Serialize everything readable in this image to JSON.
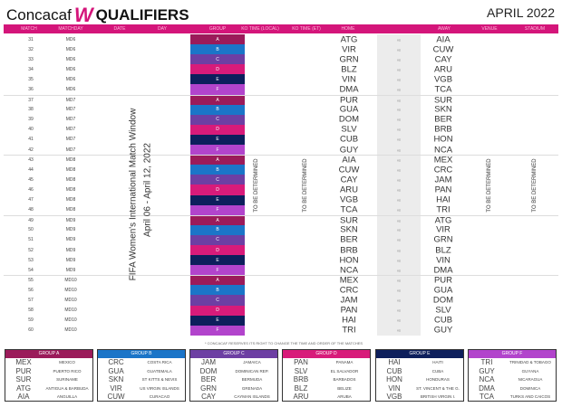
{
  "header": {
    "brand": "Concacaf",
    "logo_mark": "W",
    "title": "QUALIFIERS",
    "month": "APRIL 2022"
  },
  "columns": [
    "MATCH",
    "MATCHDAY",
    "DATE",
    "DAY",
    "GROUP",
    "KO TIME (LOCAL)",
    "KO TIME (ET)",
    "HOME",
    "AWAY",
    "VENUE",
    "STADIUM"
  ],
  "window_text": [
    "FIFA Women's International Match Window",
    "April 06 - April 12, 2022"
  ],
  "tbd": "TO BE DETERMINED",
  "vs": "vs",
  "group_colors": {
    "A": "#9b1b5a",
    "B": "#1b75c8",
    "C": "#6d3fa3",
    "D": "#d81b7a",
    "E": "#0d1f5c",
    "F": "#b244cc"
  },
  "matches": [
    {
      "match": "31",
      "matchday": "MD6",
      "group": "A",
      "home": "ATG",
      "away": "AIA"
    },
    {
      "match": "32",
      "matchday": "MD6",
      "group": "B",
      "home": "VIR",
      "away": "CUW"
    },
    {
      "match": "33",
      "matchday": "MD6",
      "group": "C",
      "home": "GRN",
      "away": "CAY"
    },
    {
      "match": "34",
      "matchday": "MD6",
      "group": "D",
      "home": "BLZ",
      "away": "ARU"
    },
    {
      "match": "35",
      "matchday": "MD6",
      "group": "E",
      "home": "VIN",
      "away": "VGB"
    },
    {
      "match": "36",
      "matchday": "MD6",
      "group": "F",
      "home": "DMA",
      "away": "TCA"
    },
    {
      "match": "37",
      "matchday": "MD7",
      "group": "A",
      "home": "PUR",
      "away": "SUR"
    },
    {
      "match": "38",
      "matchday": "MD7",
      "group": "B",
      "home": "GUA",
      "away": "SKN"
    },
    {
      "match": "39",
      "matchday": "MD7",
      "group": "C",
      "home": "DOM",
      "away": "BER"
    },
    {
      "match": "40",
      "matchday": "MD7",
      "group": "D",
      "home": "SLV",
      "away": "BRB"
    },
    {
      "match": "41",
      "matchday": "MD7",
      "group": "E",
      "home": "CUB",
      "away": "HON"
    },
    {
      "match": "42",
      "matchday": "MD7",
      "group": "F",
      "home": "GUY",
      "away": "NCA"
    },
    {
      "match": "43",
      "matchday": "MD8",
      "group": "A",
      "home": "AIA",
      "away": "MEX"
    },
    {
      "match": "44",
      "matchday": "MD8",
      "group": "B",
      "home": "CUW",
      "away": "CRC"
    },
    {
      "match": "45",
      "matchday": "MD8",
      "group": "C",
      "home": "CAY",
      "away": "JAM"
    },
    {
      "match": "46",
      "matchday": "MD8",
      "group": "D",
      "home": "ARU",
      "away": "PAN"
    },
    {
      "match": "47",
      "matchday": "MD8",
      "group": "E",
      "home": "VGB",
      "away": "HAI"
    },
    {
      "match": "48",
      "matchday": "MD8",
      "group": "F",
      "home": "TCA",
      "away": "TRI"
    },
    {
      "match": "49",
      "matchday": "MD9",
      "group": "A",
      "home": "SUR",
      "away": "ATG"
    },
    {
      "match": "50",
      "matchday": "MD9",
      "group": "B",
      "home": "SKN",
      "away": "VIR"
    },
    {
      "match": "51",
      "matchday": "MD9",
      "group": "C",
      "home": "BER",
      "away": "GRN"
    },
    {
      "match": "52",
      "matchday": "MD9",
      "group": "D",
      "home": "BRB",
      "away": "BLZ"
    },
    {
      "match": "53",
      "matchday": "MD9",
      "group": "E",
      "home": "HON",
      "away": "VIN"
    },
    {
      "match": "54",
      "matchday": "MD9",
      "group": "F",
      "home": "NCA",
      "away": "DMA"
    },
    {
      "match": "55",
      "matchday": "MD10",
      "group": "A",
      "home": "MEX",
      "away": "PUR"
    },
    {
      "match": "56",
      "matchday": "MD10",
      "group": "B",
      "home": "CRC",
      "away": "GUA"
    },
    {
      "match": "57",
      "matchday": "MD10",
      "group": "C",
      "home": "JAM",
      "away": "DOM"
    },
    {
      "match": "58",
      "matchday": "MD10",
      "group": "D",
      "home": "PAN",
      "away": "SLV"
    },
    {
      "match": "59",
      "matchday": "MD10",
      "group": "E",
      "home": "HAI",
      "away": "CUB"
    },
    {
      "match": "60",
      "matchday": "MD10",
      "group": "F",
      "home": "TRI",
      "away": "GUY"
    }
  ],
  "note": "* CONCACAF RESERVES ITS RIGHT TO CHANGE THE TIME AND ORDER OF THE MATCHES",
  "groups": [
    {
      "title": "GROUP A",
      "key": "A",
      "teams": [
        [
          "MEX",
          "MEXICO"
        ],
        [
          "PUR",
          "PUERTO RICO"
        ],
        [
          "SUR",
          "SURINAME"
        ],
        [
          "ATG",
          "ANTIGUA & BARBUDA"
        ],
        [
          "AIA",
          "ANGUILLA"
        ]
      ]
    },
    {
      "title": "GROUP B",
      "key": "B",
      "teams": [
        [
          "CRC",
          "COSTA RICA"
        ],
        [
          "GUA",
          "GUATEMALA"
        ],
        [
          "SKN",
          "ST KITTS & NEVIS"
        ],
        [
          "VIR",
          "US VIRGIN ISLANDS"
        ],
        [
          "CUW",
          "CURACAO"
        ]
      ]
    },
    {
      "title": "GROUP C",
      "key": "C",
      "teams": [
        [
          "JAM",
          "JAMAICA"
        ],
        [
          "DOM",
          "DOMINICAN REP."
        ],
        [
          "BER",
          "BERMUDA"
        ],
        [
          "GRN",
          "GRENADA"
        ],
        [
          "CAY",
          "CAYMAN ISLANDS"
        ]
      ]
    },
    {
      "title": "GROUP D",
      "key": "D",
      "teams": [
        [
          "PAN",
          "PANAMA"
        ],
        [
          "SLV",
          "EL SALVADOR"
        ],
        [
          "BRB",
          "BARBADOS"
        ],
        [
          "BLZ",
          "BELIZE"
        ],
        [
          "ARU",
          "ARUBA"
        ]
      ]
    },
    {
      "title": "GROUP E",
      "key": "E",
      "teams": [
        [
          "HAI",
          "HAITI"
        ],
        [
          "CUB",
          "CUBA"
        ],
        [
          "HON",
          "HONDURAS"
        ],
        [
          "VIN",
          "ST. VINCENT & THE G."
        ],
        [
          "VGB",
          "BRITISH VIRGIN I."
        ]
      ]
    },
    {
      "title": "GROUP F",
      "key": "F",
      "teams": [
        [
          "TRI",
          "TRINIDAD & TOBAGO"
        ],
        [
          "GUY",
          "GUYANA"
        ],
        [
          "NCA",
          "NICARAGUA"
        ],
        [
          "DMA",
          "DOMINICA"
        ],
        [
          "TCA",
          "TURKS AND CAICOS"
        ]
      ]
    }
  ]
}
